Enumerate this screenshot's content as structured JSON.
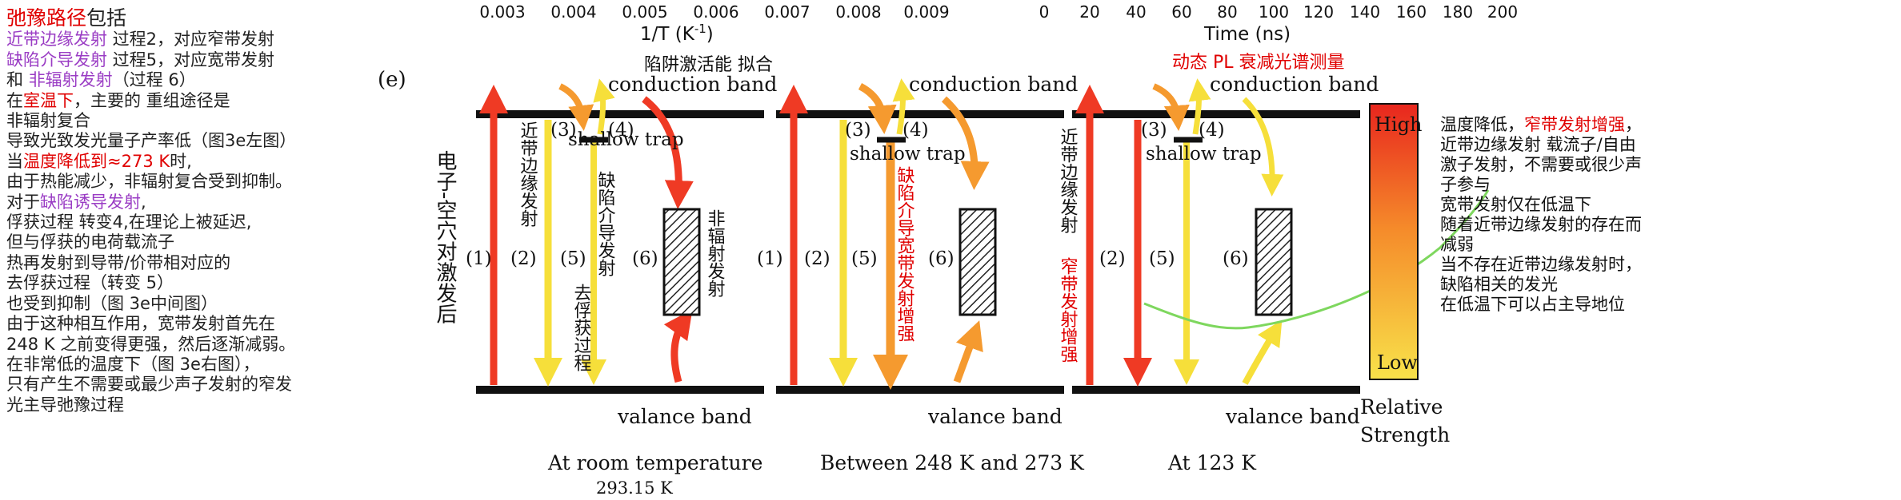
{
  "top_axes": {
    "left_ticks": [
      "0.003",
      "0.004",
      "0.005",
      "0.006",
      "0.007",
      "0.008",
      "0.009"
    ],
    "left_label": "1/T (K",
    "left_label_sup": "-1",
    "left_label_close": ")",
    "right_ticks": [
      "0",
      "20",
      "40",
      "60",
      "80",
      "100",
      "120",
      "140",
      "160",
      "180",
      "200"
    ],
    "right_label": "Time (ns)"
  },
  "notes": {
    "l1": {
      "a": "弛豫路径",
      "b": "包括"
    },
    "l2": {
      "a": "近带边缘发射",
      "b": " 过程2，对应窄带发射"
    },
    "l3": {
      "a": "缺陷介导发射",
      "b": " 过程5，对应宽带发射"
    },
    "l4": {
      "a": "和 ",
      "b": "非辐射发射",
      "c": "（过程 6）"
    },
    "l5": {
      "a": "在",
      "b": "室温下",
      "c": "，主要的 重组途径是"
    },
    "l6": "非辐射复合",
    "l7": "导致光致发光量子产率低（图3e左图）",
    "l8": {
      "a": "当",
      "b": "温度降低到≈273 K",
      "c": "时,"
    },
    "l9": "由于热能减少，非辐射复合受到抑制。",
    "l10": {
      "a": "对于",
      "b": "缺陷诱导发射",
      "c": ","
    },
    "l11": "俘获过程 转变4,在理论上被延迟,",
    "l12": "但与俘获的电荷载流子",
    "l13": "热再发射到导带/价带相对应的",
    "l14": "去俘获过程（转变 5）",
    "l15": "也受到抑制（图 3e中间图）",
    "l16": "由于这种相互作用，宽带发射首先在",
    "l17": "248 K 之前变得更强，然后逐渐减弱。",
    "l18": "在非常低的温度下（图 3e右图），",
    "l19": "只有产生不需要或最少声子发射的窄发",
    "l20": "光主导弛豫过程"
  },
  "panel_label": "(e)",
  "panels": [
    {
      "conduction": "conduction band",
      "valance": "valance band",
      "trap": "shallow trap",
      "caption": "At room temperature",
      "caption2": "293.15 K",
      "n1": "(1)",
      "n2": "(2)",
      "n3": "(3)",
      "n4": "(4)",
      "n5": "(5)",
      "n6": "(6)",
      "overlay": "陷阱激活能 拟合",
      "v_excite": "电子-空穴对激发后",
      "v_near": "近带边缘发射",
      "v_defect": "缺陷介导发射",
      "v_detrap": "去俘获过程",
      "v_nonrad": "非辐射发射"
    },
    {
      "conduction": "conduction band",
      "valance": "valance band",
      "trap": "shallow trap",
      "caption": "Between 248 K and 273 K",
      "n1": "(1)",
      "n2": "(2)",
      "n3": "(3)",
      "n4": "(4)",
      "n5": "(5)",
      "n6": "(6)",
      "v_broad": "缺陷介导宽带发射增强"
    },
    {
      "conduction": "conduction band",
      "valance": "valance band",
      "trap": "shallow trap",
      "caption": "At 123 K",
      "n2": "(2)",
      "n3": "(3)",
      "n4": "(4)",
      "n5": "(5)",
      "n6": "(6)",
      "overlay": "动态 PL 衰减光谱测量",
      "v_near": "近带边缘发射",
      "v_narrow": "窄带发射增强"
    }
  ],
  "legend": {
    "high": "High",
    "low": "Low",
    "label1": "Relative",
    "label2": "Strength"
  },
  "right_notes": {
    "r1": {
      "a": "温度降低，",
      "b": "窄带发射增强",
      "c": "，"
    },
    "r2": "近带边缘发射 载流子/自由",
    "r3": "激子发射，不需要或很少声",
    "r4": "子参与",
    "r5": "宽带发射仅在低温下",
    "r6": "随着近带边缘发射的存在而",
    "r7": "减弱",
    "r8": "当不存在近带边缘发射时，",
    "r9": "缺陷相关的发光",
    "r10": "在低温下可以占主导地位"
  },
  "colors": {
    "red": "#ef3a24",
    "orange": "#f59a2f",
    "yellow": "#f6df3a",
    "green": "#7ed75e",
    "text_red": "#e00000",
    "text_purple": "#9a3cc4"
  }
}
